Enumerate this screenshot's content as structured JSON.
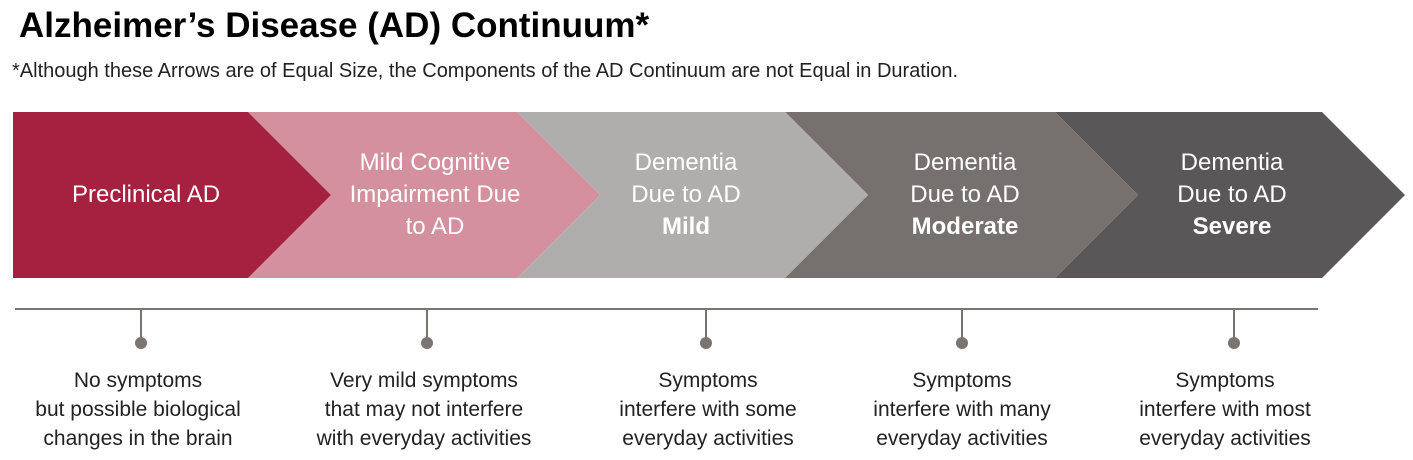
{
  "title": "Alzheimer’s Disease (AD) Continuum*",
  "subtitle": "*Although these Arrows are of Equal Size, the Components of the AD Continuum are not Equal in Duration.",
  "colors": {
    "preclinical": "#a6203f",
    "mci": "#d4909f",
    "mild": "#b0aead",
    "moderate": "#76706f",
    "severe": "#595757",
    "timeline": "#7a7472"
  },
  "stages": [
    {
      "lines": [
        "Preclinical AD"
      ],
      "emphasis": ""
    },
    {
      "lines": [
        "Mild Cognitive",
        "Impairment Due",
        "to AD"
      ],
      "emphasis": ""
    },
    {
      "lines": [
        "Dementia",
        "Due to AD"
      ],
      "emphasis": "Mild"
    },
    {
      "lines": [
        "Dementia",
        "Due to AD"
      ],
      "emphasis": "Moderate"
    },
    {
      "lines": [
        "Dementia",
        "Due to AD"
      ],
      "emphasis": "Severe"
    }
  ],
  "descriptions": [
    [
      "No symptoms",
      "but possible biological",
      "changes in the brain"
    ],
    [
      "Very mild symptoms",
      "that may not interfere",
      "with everyday activities"
    ],
    [
      "Symptoms",
      "interfere with some",
      "everyday activities"
    ],
    [
      "Symptoms",
      "interfere with many",
      "everyday activities"
    ],
    [
      "Symptoms",
      "interfere with most",
      "everyday activities"
    ]
  ]
}
